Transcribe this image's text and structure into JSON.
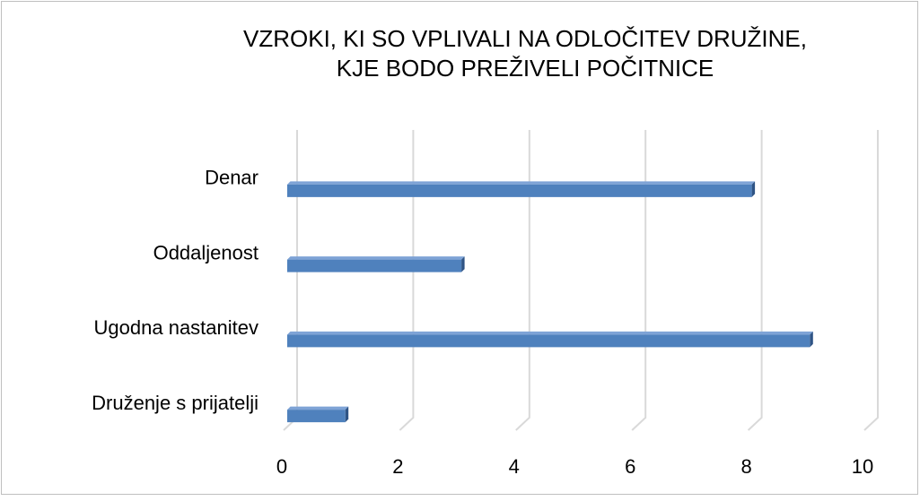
{
  "chart_data": {
    "type": "bar",
    "orientation": "horizontal",
    "3d": true,
    "title": [
      "VZROKI, KI SO VPLIVALI  NA ODLOČITEV  DRUŽINE,",
      "KJE BODO PREŽIVELI POČITNICE"
    ],
    "categories": [
      "Denar",
      "Oddaljenost",
      "Ugodna nastanitev",
      "Druženje s prijatelji"
    ],
    "values": [
      8,
      3,
      9,
      1
    ],
    "color": "#4f81bd",
    "xlim": [
      0,
      10
    ],
    "xticks": [
      0,
      2,
      4,
      6,
      8,
      10
    ],
    "grid": true
  }
}
